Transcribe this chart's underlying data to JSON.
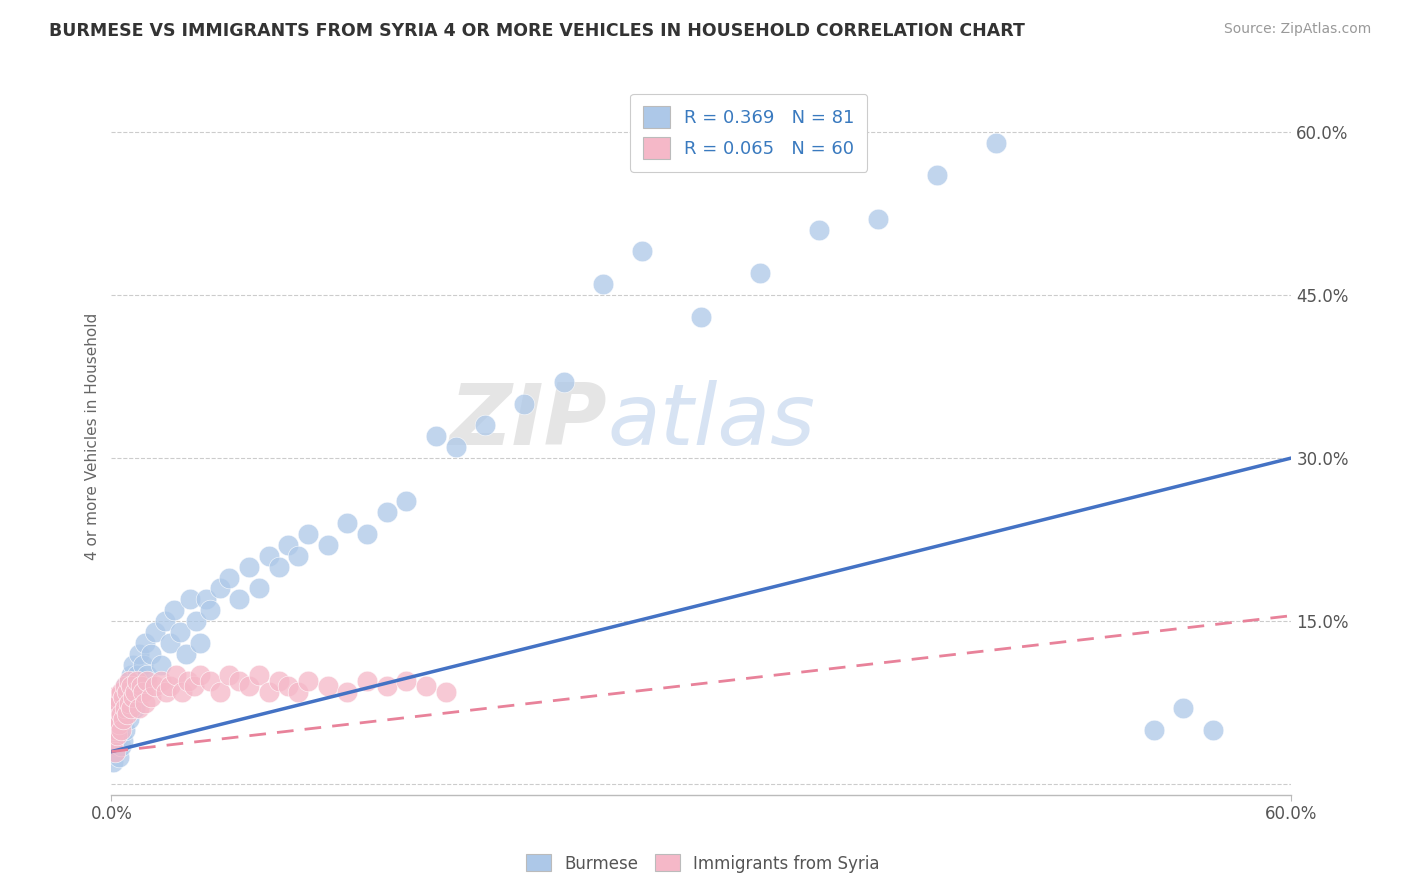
{
  "title": "BURMESE VS IMMIGRANTS FROM SYRIA 4 OR MORE VEHICLES IN HOUSEHOLD CORRELATION CHART",
  "source": "Source: ZipAtlas.com",
  "ylabel": "4 or more Vehicles in Household",
  "ytick_vals": [
    0.0,
    0.15,
    0.3,
    0.45,
    0.6
  ],
  "ytick_labels": [
    "",
    "15.0%",
    "30.0%",
    "45.0%",
    "60.0%"
  ],
  "xlim": [
    0.0,
    0.6
  ],
  "ylim": [
    -0.01,
    0.65
  ],
  "legend_burmese_R": "0.369",
  "legend_burmese_N": "81",
  "legend_syria_R": "0.065",
  "legend_syria_N": "60",
  "burmese_color": "#adc8e8",
  "syria_color": "#f5b8c8",
  "burmese_line_color": "#4472c4",
  "syria_line_color": "#e8829a",
  "watermark_zip": "ZIP",
  "watermark_atlas": "atlas",
  "burmese_x": [
    0.001,
    0.001,
    0.002,
    0.002,
    0.002,
    0.003,
    0.003,
    0.003,
    0.004,
    0.004,
    0.004,
    0.005,
    0.005,
    0.005,
    0.005,
    0.006,
    0.006,
    0.006,
    0.007,
    0.007,
    0.007,
    0.008,
    0.008,
    0.009,
    0.009,
    0.01,
    0.01,
    0.011,
    0.011,
    0.012,
    0.012,
    0.013,
    0.014,
    0.015,
    0.016,
    0.017,
    0.018,
    0.02,
    0.022,
    0.025,
    0.027,
    0.03,
    0.032,
    0.035,
    0.038,
    0.04,
    0.043,
    0.045,
    0.048,
    0.05,
    0.055,
    0.06,
    0.065,
    0.07,
    0.075,
    0.08,
    0.085,
    0.09,
    0.095,
    0.1,
    0.11,
    0.12,
    0.13,
    0.14,
    0.15,
    0.165,
    0.175,
    0.19,
    0.21,
    0.23,
    0.25,
    0.27,
    0.3,
    0.33,
    0.36,
    0.39,
    0.42,
    0.45,
    0.53,
    0.545,
    0.56
  ],
  "burmese_y": [
    0.05,
    0.02,
    0.04,
    0.06,
    0.03,
    0.05,
    0.07,
    0.035,
    0.06,
    0.045,
    0.025,
    0.055,
    0.065,
    0.035,
    0.075,
    0.06,
    0.04,
    0.08,
    0.065,
    0.05,
    0.09,
    0.07,
    0.08,
    0.06,
    0.095,
    0.075,
    0.1,
    0.08,
    0.11,
    0.09,
    0.07,
    0.1,
    0.12,
    0.09,
    0.11,
    0.13,
    0.1,
    0.12,
    0.14,
    0.11,
    0.15,
    0.13,
    0.16,
    0.14,
    0.12,
    0.17,
    0.15,
    0.13,
    0.17,
    0.16,
    0.18,
    0.19,
    0.17,
    0.2,
    0.18,
    0.21,
    0.2,
    0.22,
    0.21,
    0.23,
    0.22,
    0.24,
    0.23,
    0.25,
    0.26,
    0.32,
    0.31,
    0.33,
    0.35,
    0.37,
    0.46,
    0.49,
    0.43,
    0.47,
    0.51,
    0.52,
    0.56,
    0.59,
    0.05,
    0.07,
    0.05
  ],
  "syria_x": [
    0.001,
    0.001,
    0.001,
    0.002,
    0.002,
    0.002,
    0.003,
    0.003,
    0.003,
    0.004,
    0.004,
    0.005,
    0.005,
    0.005,
    0.006,
    0.006,
    0.007,
    0.007,
    0.008,
    0.008,
    0.009,
    0.009,
    0.01,
    0.01,
    0.011,
    0.012,
    0.013,
    0.014,
    0.015,
    0.016,
    0.017,
    0.018,
    0.02,
    0.022,
    0.025,
    0.028,
    0.03,
    0.033,
    0.036,
    0.039,
    0.042,
    0.045,
    0.05,
    0.055,
    0.06,
    0.065,
    0.07,
    0.075,
    0.08,
    0.085,
    0.09,
    0.095,
    0.1,
    0.11,
    0.12,
    0.13,
    0.14,
    0.15,
    0.16,
    0.17
  ],
  "syria_y": [
    0.06,
    0.04,
    0.08,
    0.05,
    0.07,
    0.03,
    0.06,
    0.045,
    0.08,
    0.055,
    0.075,
    0.065,
    0.05,
    0.085,
    0.06,
    0.08,
    0.07,
    0.09,
    0.065,
    0.085,
    0.075,
    0.095,
    0.07,
    0.09,
    0.08,
    0.085,
    0.095,
    0.07,
    0.09,
    0.085,
    0.075,
    0.095,
    0.08,
    0.09,
    0.095,
    0.085,
    0.09,
    0.1,
    0.085,
    0.095,
    0.09,
    0.1,
    0.095,
    0.085,
    0.1,
    0.095,
    0.09,
    0.1,
    0.085,
    0.095,
    0.09,
    0.085,
    0.095,
    0.09,
    0.085,
    0.095,
    0.09,
    0.095,
    0.09,
    0.085
  ],
  "burmese_line_x": [
    0.0,
    0.6
  ],
  "burmese_line_y": [
    0.03,
    0.3
  ],
  "syria_line_x": [
    0.0,
    0.6
  ],
  "syria_line_y": [
    0.03,
    0.155
  ]
}
